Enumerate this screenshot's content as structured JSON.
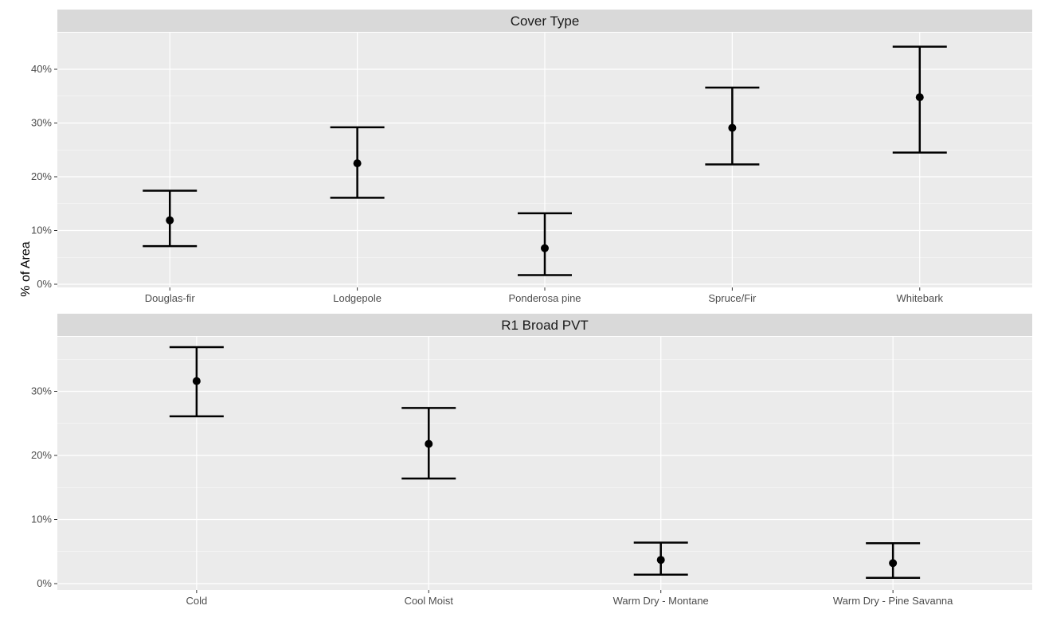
{
  "chart_data": {
    "type": "errorbar",
    "ylabel": "% of Area",
    "grid": true,
    "legend": "none",
    "panels": [
      {
        "title": "Cover Type",
        "categories": [
          "Douglas-fir",
          "Lodgepole",
          "Ponderosa pine",
          "Spruce/Fir",
          "Whitebark"
        ],
        "values": [
          11.9,
          22.5,
          6.7,
          29.1,
          34.8
        ],
        "lower": [
          7.1,
          16.1,
          1.7,
          22.3,
          24.5
        ],
        "upper": [
          17.4,
          29.2,
          13.2,
          36.6,
          44.2
        ],
        "ylim": [
          0,
          45
        ],
        "yticks": [
          0,
          10,
          20,
          30,
          40
        ],
        "ytick_labels": [
          "0%",
          "10%",
          "20%",
          "30%",
          "40%"
        ]
      },
      {
        "title": "R1 Broad PVT",
        "categories": [
          "Cold",
          "Cool Moist",
          "Warm Dry - Montane",
          "Warm Dry - Pine Savanna"
        ],
        "values": [
          31.6,
          21.8,
          3.7,
          3.2
        ],
        "lower": [
          26.1,
          16.4,
          1.4,
          0.9
        ],
        "upper": [
          36.9,
          27.4,
          6.4,
          6.3
        ],
        "ylim": [
          0,
          38
        ],
        "yticks": [
          0,
          10,
          20,
          30
        ],
        "ytick_labels": [
          "0%",
          "10%",
          "20%",
          "30%"
        ]
      }
    ]
  }
}
